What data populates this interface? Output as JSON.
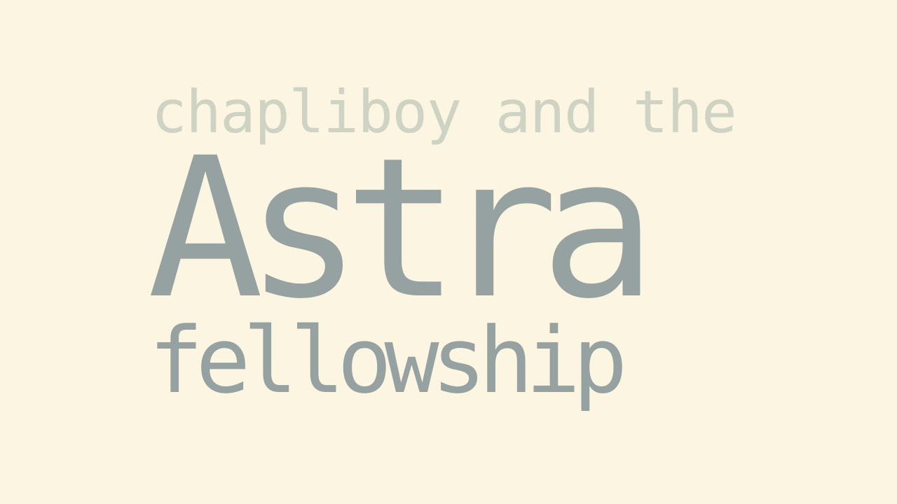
{
  "colors": {
    "background": "#fcf5e2",
    "subtitle": "#cfd3c4",
    "title": "#96a2a1"
  },
  "title": {
    "line1": "chapliboy and the",
    "line2": "Astra",
    "line3": "fellowship"
  }
}
